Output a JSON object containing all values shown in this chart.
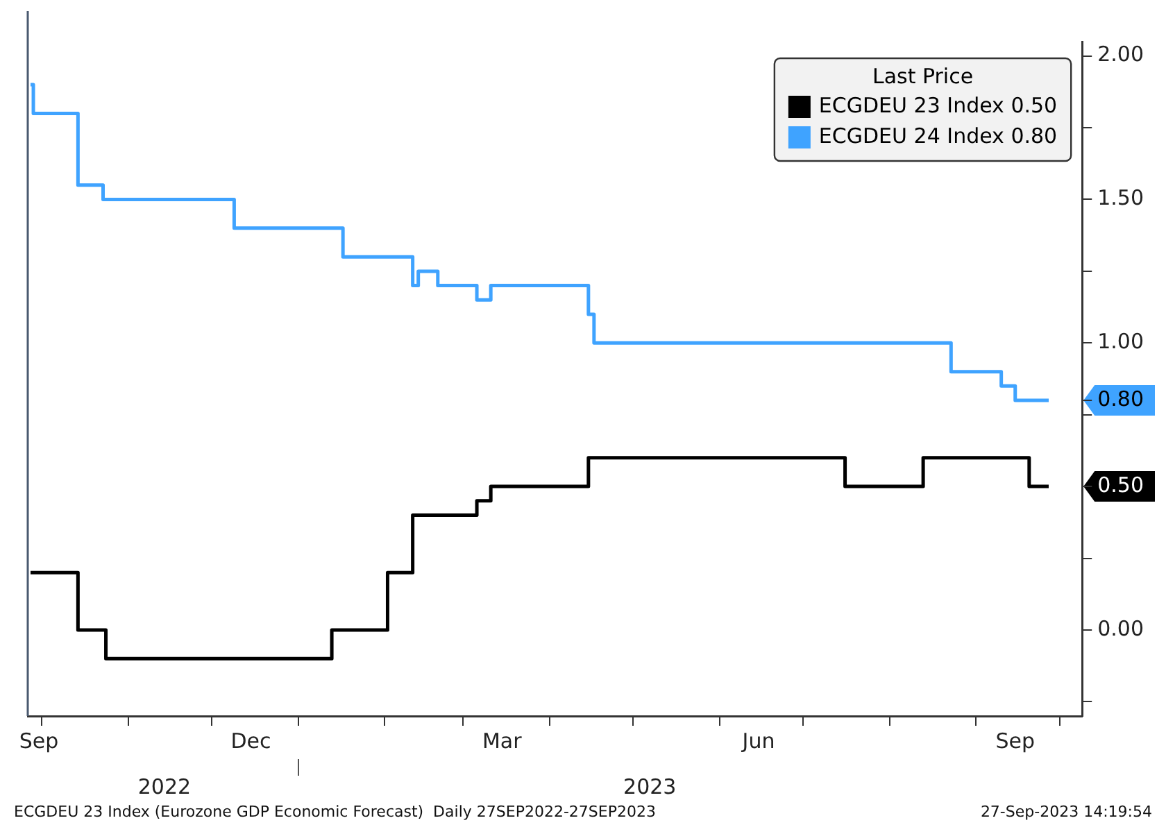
{
  "chart_data": {
    "type": "step",
    "legend_title": "Last Price",
    "legend": "top right",
    "marker": "none",
    "grid": false,
    "series": [
      {
        "name": "ECGDEU 23 Index 0.50",
        "color": "#000000",
        "x": [
          "2022-09-27",
          "2022-10-14",
          "2022-10-24",
          "2023-01-13",
          "2023-02-02",
          "2023-02-11",
          "2023-03-06",
          "2023-03-11",
          "2023-04-15",
          "2023-07-16",
          "2023-08-13",
          "2023-09-20",
          "2023-09-27"
        ],
        "values": [
          0.2,
          0.0,
          -0.1,
          0.0,
          0.2,
          0.4,
          0.45,
          0.5,
          0.6,
          0.5,
          0.6,
          0.5,
          0.5
        ]
      },
      {
        "name": "ECGDEU 24 Index 0.80",
        "color": "#3fa3ff",
        "x": [
          "2022-09-27",
          "2022-09-28",
          "2022-10-14",
          "2022-10-23",
          "2022-12-09",
          "2023-01-17",
          "2023-02-11",
          "2023-02-13",
          "2023-02-20",
          "2023-03-06",
          "2023-03-11",
          "2023-04-15",
          "2023-04-17",
          "2023-08-23",
          "2023-09-10",
          "2023-09-15",
          "2023-09-27"
        ],
        "values": [
          1.9,
          1.8,
          1.55,
          1.5,
          1.4,
          1.3,
          1.2,
          1.25,
          1.2,
          1.15,
          1.2,
          1.1,
          1.0,
          0.9,
          0.85,
          0.8,
          0.8
        ]
      }
    ],
    "xlim": [
      "2022-09-26",
      "2023-10-09"
    ],
    "xticks": [
      {
        "value": "2022-10-01",
        "label": null
      },
      {
        "value": "2022-09-30",
        "label": "Sep"
      },
      {
        "value": "2022-11-01",
        "label": null
      },
      {
        "value": "2022-12-01",
        "label": null
      },
      {
        "value": "2022-12-15",
        "label": "Dec"
      },
      {
        "value": "2023-01-01",
        "label": null
      },
      {
        "value": "2023-02-01",
        "label": null
      },
      {
        "value": "2023-03-01",
        "label": null
      },
      {
        "value": "2023-03-15",
        "label": "Mar"
      },
      {
        "value": "2023-04-01",
        "label": null
      },
      {
        "value": "2023-05-01",
        "label": null
      },
      {
        "value": "2023-06-01",
        "label": null
      },
      {
        "value": "2023-06-15",
        "label": "Jun"
      },
      {
        "value": "2023-07-01",
        "label": null
      },
      {
        "value": "2023-08-01",
        "label": null
      },
      {
        "value": "2023-09-01",
        "label": null
      },
      {
        "value": "2023-09-15",
        "label": "Sep"
      },
      {
        "value": "2023-10-01",
        "label": null
      }
    ],
    "x2lim": [
      "2022-09-26",
      "2023-10-09"
    ],
    "x2ticks": [
      {
        "value": "2022-11-14",
        "label": "2022"
      },
      {
        "value": "2023-01-01",
        "label": null
      },
      {
        "value": "2023-05-07",
        "label": "2023"
      }
    ],
    "ylim": [
      -0.3,
      2.05
    ],
    "yticks": [
      {
        "value": -0.25,
        "label": null
      },
      {
        "value": 0,
        "label": "0.00"
      },
      {
        "value": 0.25,
        "label": null
      },
      {
        "value": 0.5,
        "label": "0.50"
      },
      {
        "value": 0.75,
        "label": null
      },
      {
        "value": 0.8,
        "label": "0.80"
      },
      {
        "value": 1,
        "label": "1.00"
      },
      {
        "value": 1.25,
        "label": null
      },
      {
        "value": 1.5,
        "label": "1.50"
      },
      {
        "value": 1.75,
        "label": null
      },
      {
        "value": 2,
        "label": "2.00"
      }
    ],
    "annotations": [
      "ECGDEU 23 Index (Eurozone GDP Economic Forecast)  Daily 27SEP2022-27SEP2023",
      "27-Sep-2023 14:19:54"
    ]
  }
}
